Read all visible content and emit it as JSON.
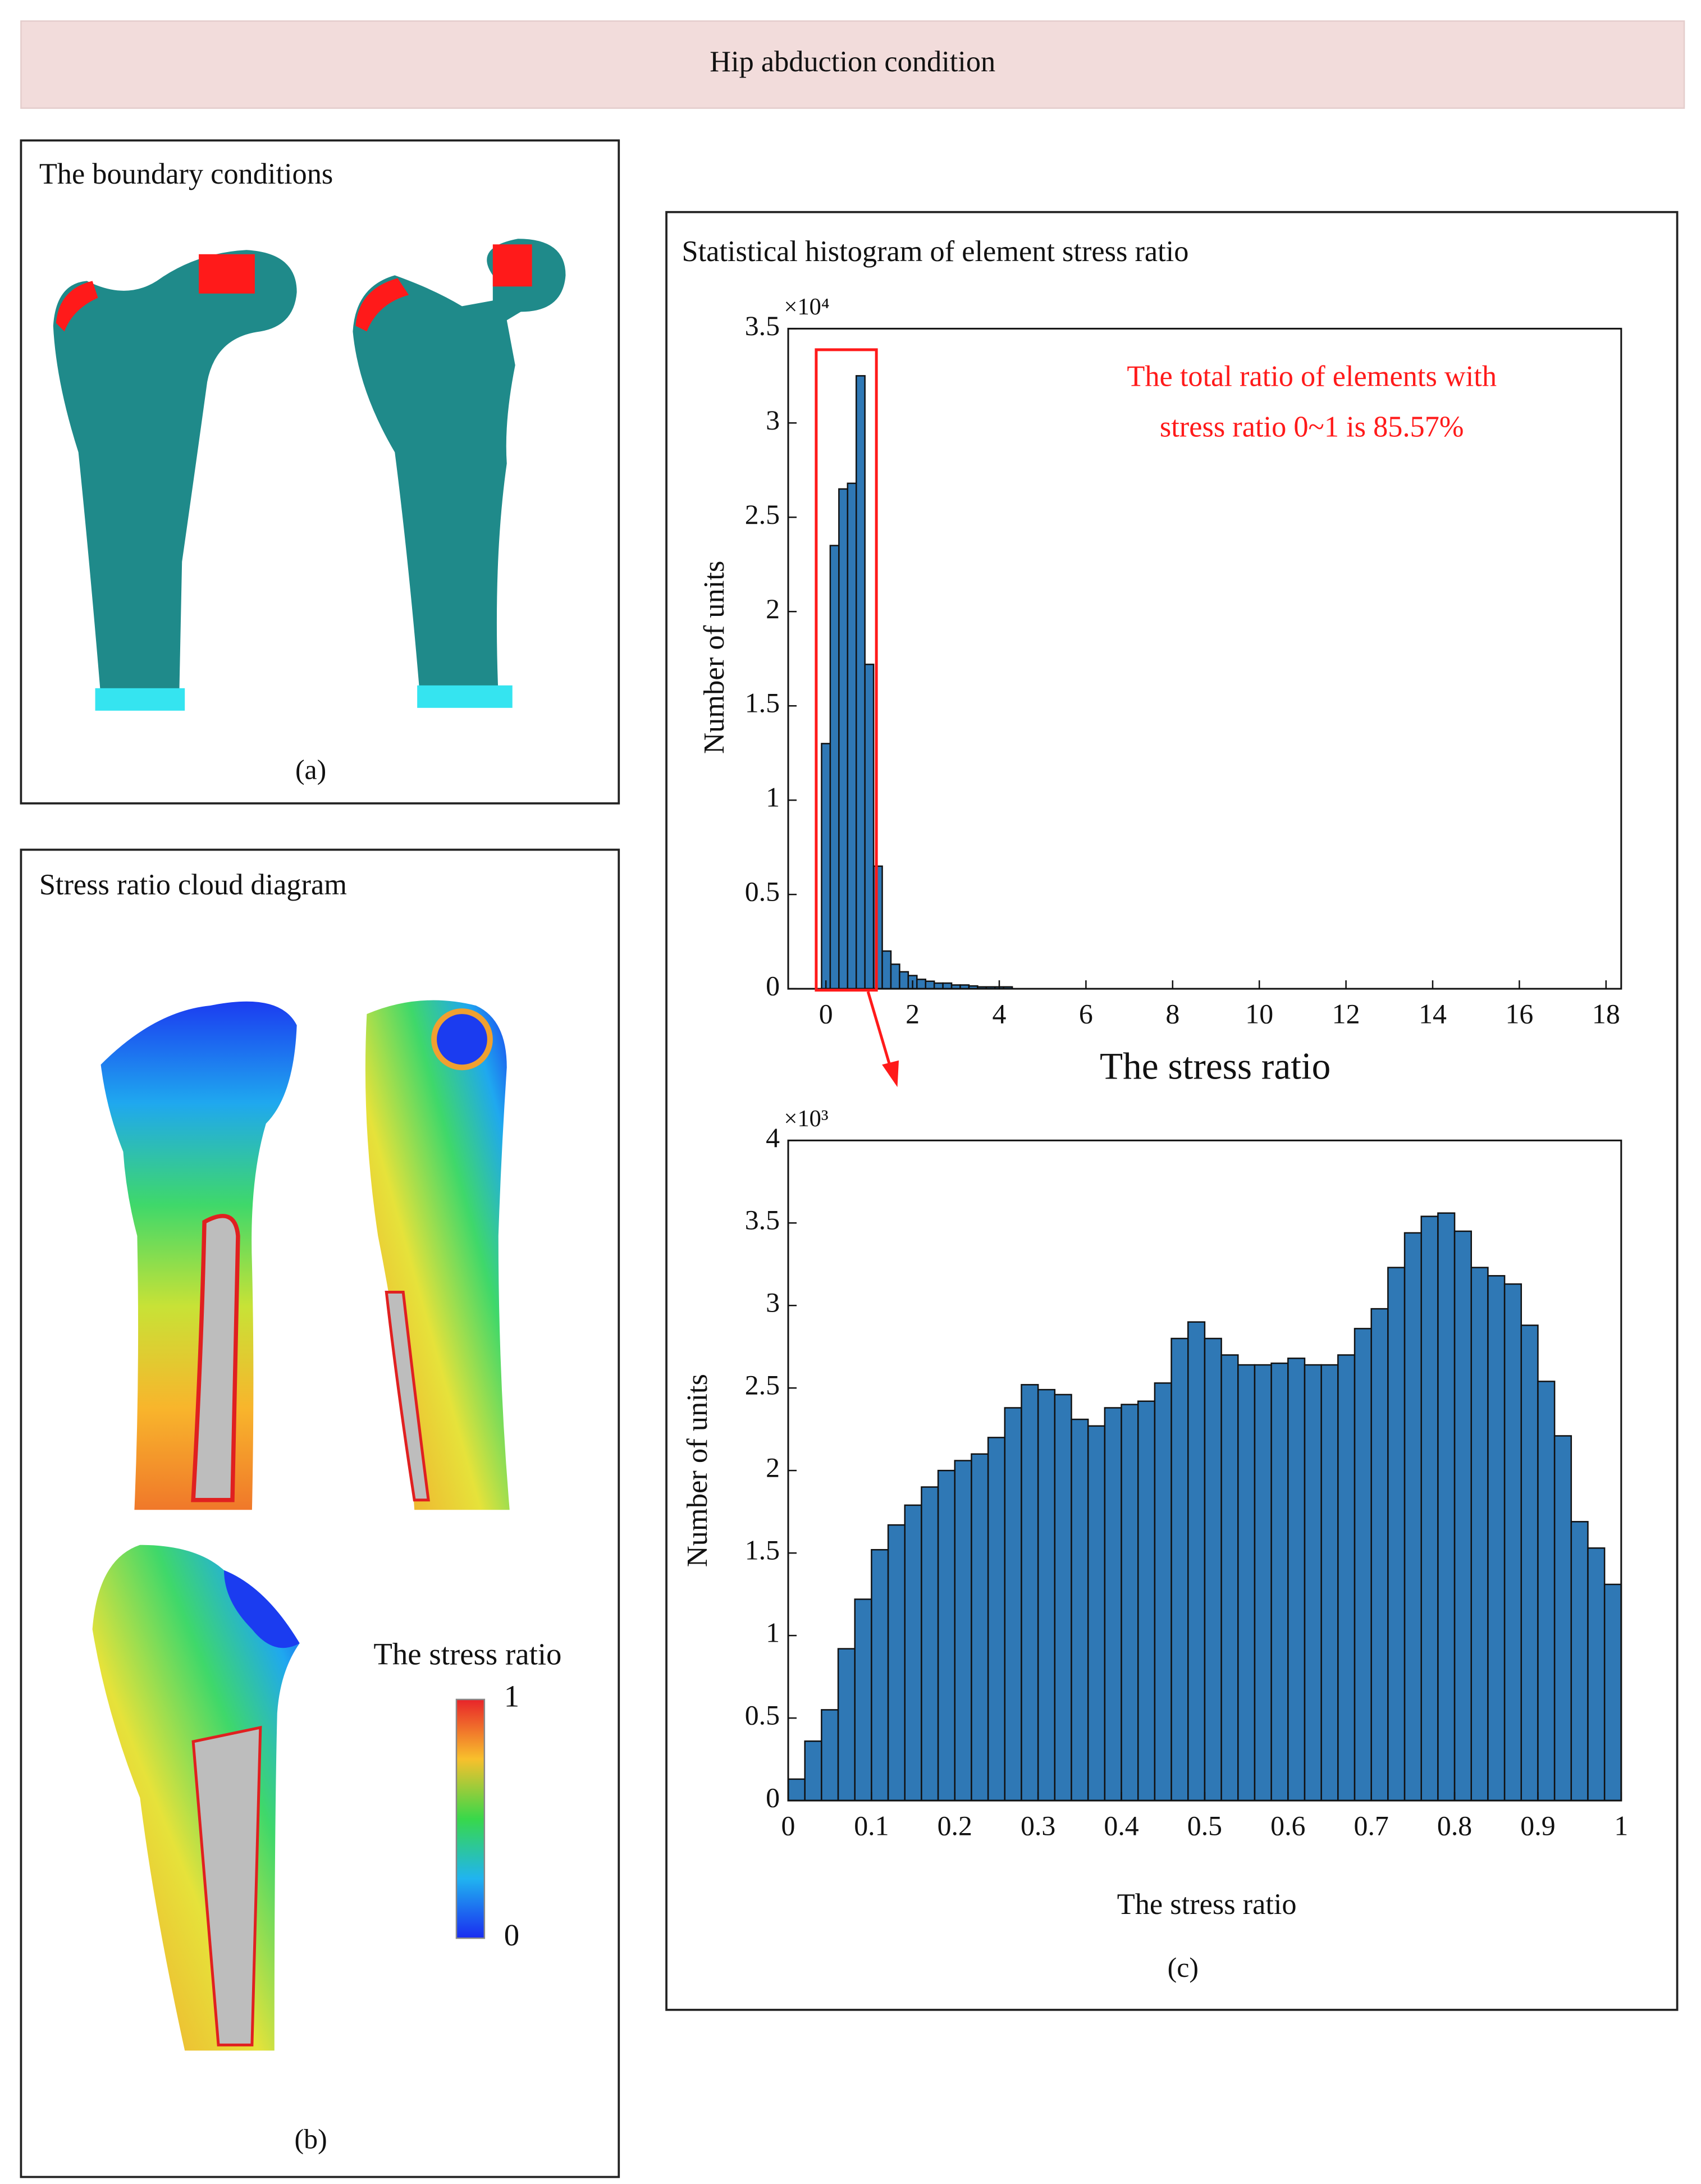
{
  "header": "Hip abduction condition",
  "panel_a": {
    "title": "The boundary conditions",
    "caption": "(a)"
  },
  "panel_b": {
    "title": "Stress ratio cloud diagram",
    "colorbar_title": "The stress ratio",
    "colorbar_max": "1",
    "colorbar_min": "0",
    "caption": "(b)"
  },
  "panel_c": {
    "title": "Statistical histogram of element stress ratio",
    "caption": "(c)"
  },
  "chart_data": [
    {
      "type": "histogram",
      "xlabel": "The stress ratio",
      "ylabel": "Number of units",
      "y_multiplier": "×10⁴",
      "annotation": [
        "The total ratio of elements with",
        "stress ratio 0~1 is 85.57%"
      ],
      "color": "#2f78b5",
      "bins": [
        -0.1,
        0.1,
        0.3,
        0.5,
        0.7,
        0.9,
        1.1,
        1.3,
        1.5,
        1.7,
        1.9,
        2.1,
        2.3,
        2.5,
        2.7,
        2.9,
        3.1,
        3.3,
        3.5,
        3.7,
        3.9,
        4.1,
        4.3
      ],
      "values": [
        1.3,
        2.35,
        2.65,
        2.68,
        3.25,
        1.72,
        0.65,
        0.2,
        0.13,
        0.09,
        0.07,
        0.05,
        0.04,
        0.03,
        0.03,
        0.02,
        0.02,
        0.015,
        0.01,
        0.01,
        0.01,
        0.01
      ],
      "xlim": [
        -0.87,
        18.35
      ],
      "ylim": [
        0,
        3.5
      ],
      "xticks": [
        0,
        2,
        4,
        6,
        8,
        10,
        12,
        14,
        16,
        18
      ],
      "yticks": [
        0,
        0.5,
        1,
        1.5,
        2,
        2.5,
        3,
        3.5
      ]
    },
    {
      "type": "histogram",
      "xlabel": "The stress ratio",
      "ylabel": "Number of units",
      "y_multiplier": "×10³",
      "color": "#2f78b5",
      "bins": [
        0,
        0.02,
        0.04,
        0.06,
        0.08,
        0.1,
        0.12,
        0.14,
        0.16,
        0.18,
        0.2,
        0.22,
        0.24,
        0.26,
        0.28,
        0.3,
        0.32,
        0.34,
        0.36,
        0.38,
        0.4,
        0.42,
        0.44,
        0.46,
        0.48,
        0.5,
        0.52,
        0.54,
        0.56,
        0.58,
        0.6,
        0.62,
        0.64,
        0.66,
        0.68,
        0.7,
        0.72,
        0.74,
        0.76,
        0.78,
        0.8,
        0.82,
        0.84,
        0.86,
        0.88,
        0.9,
        0.92,
        0.94,
        0.96,
        0.98,
        1
      ],
      "values": [
        0.13,
        0.36,
        0.55,
        0.92,
        1.22,
        1.52,
        1.67,
        1.79,
        1.9,
        2.0,
        2.06,
        2.1,
        2.2,
        2.38,
        2.52,
        2.49,
        2.46,
        2.31,
        2.27,
        2.38,
        2.4,
        2.42,
        2.53,
        2.8,
        2.9,
        2.8,
        2.7,
        2.64,
        2.64,
        2.65,
        2.68,
        2.64,
        2.64,
        2.7,
        2.86,
        2.98,
        3.23,
        3.44,
        3.54,
        3.56,
        3.45,
        3.23,
        3.18,
        3.13,
        2.88,
        2.54,
        2.21,
        1.69,
        1.53,
        1.31
      ],
      "xlim": [
        0,
        1
      ],
      "ylim": [
        0,
        4
      ],
      "xticks": [
        0,
        0.1,
        0.2,
        0.3,
        0.4,
        0.5,
        0.6,
        0.7,
        0.8,
        0.9,
        1
      ],
      "yticks": [
        0,
        0.5,
        1,
        1.5,
        2,
        2.5,
        3,
        3.5,
        4
      ]
    }
  ]
}
